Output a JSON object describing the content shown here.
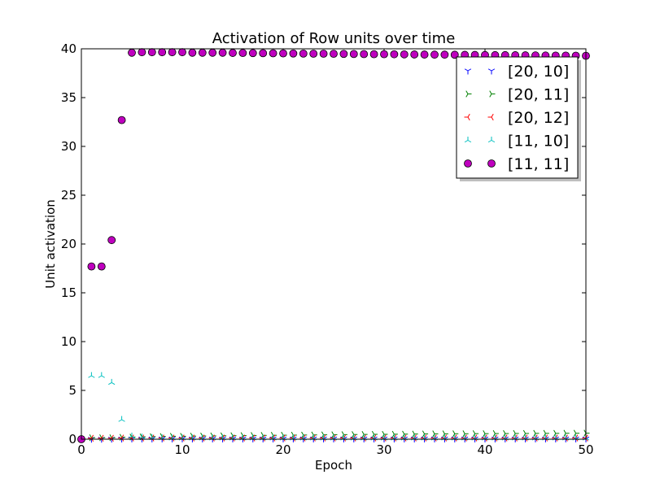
{
  "chart_data": {
    "type": "scatter",
    "title": "Activation of Row units over time",
    "xlabel": "Epoch",
    "ylabel": "Unit activation",
    "xlim": [
      0,
      50
    ],
    "ylim": [
      0,
      40
    ],
    "xticks": [
      "0",
      "10",
      "20",
      "30",
      "40",
      "50"
    ],
    "yticks": [
      "0",
      "5",
      "10",
      "15",
      "20",
      "25",
      "30",
      "35",
      "40"
    ],
    "grid": false,
    "legend_position": "top-right",
    "x": [
      0,
      1,
      2,
      3,
      4,
      5,
      6,
      7,
      8,
      9,
      10,
      11,
      12,
      13,
      14,
      15,
      16,
      17,
      18,
      19,
      20,
      21,
      22,
      23,
      24,
      25,
      26,
      27,
      28,
      29,
      30,
      31,
      32,
      33,
      34,
      35,
      36,
      37,
      38,
      39,
      40,
      41,
      42,
      43,
      44,
      45,
      46,
      47,
      48,
      49,
      50
    ],
    "series": [
      {
        "name": "[20, 10]",
        "marker": "tri_down",
        "color": "#0000ff",
        "values": [
          0,
          0.02,
          0.02,
          0.03,
          0.04,
          0.05,
          0.05,
          0.05,
          0.05,
          0.05,
          0.05,
          0.05,
          0.05,
          0.05,
          0.05,
          0.05,
          0.05,
          0.05,
          0.05,
          0.05,
          0.05,
          0.05,
          0.05,
          0.05,
          0.05,
          0.05,
          0.05,
          0.05,
          0.05,
          0.05,
          0.05,
          0.05,
          0.05,
          0.05,
          0.05,
          0.05,
          0.05,
          0.05,
          0.05,
          0.05,
          0.05,
          0.05,
          0.05,
          0.05,
          0.05,
          0.05,
          0.05,
          0.05,
          0.05,
          0.05,
          0.05
        ]
      },
      {
        "name": "[20, 11]",
        "marker": "tri_right",
        "color": "#008000",
        "values": [
          0,
          0.15,
          0.15,
          0.15,
          0.2,
          0.22,
          0.24,
          0.26,
          0.28,
          0.3,
          0.3,
          0.32,
          0.33,
          0.34,
          0.35,
          0.36,
          0.37,
          0.38,
          0.39,
          0.4,
          0.41,
          0.42,
          0.43,
          0.44,
          0.45,
          0.46,
          0.47,
          0.48,
          0.49,
          0.5,
          0.5,
          0.51,
          0.52,
          0.53,
          0.54,
          0.55,
          0.55,
          0.56,
          0.56,
          0.57,
          0.57,
          0.58,
          0.58,
          0.59,
          0.59,
          0.6,
          0.6,
          0.6,
          0.61,
          0.61,
          0.62
        ]
      },
      {
        "name": "[20, 12]",
        "marker": "tri_left",
        "color": "#ff0000",
        "values": [
          0,
          0.1,
          0.1,
          0.1,
          0.12,
          0.12,
          0.12,
          0.12,
          0.12,
          0.12,
          0.12,
          0.12,
          0.12,
          0.12,
          0.12,
          0.12,
          0.12,
          0.12,
          0.12,
          0.12,
          0.12,
          0.12,
          0.12,
          0.12,
          0.12,
          0.12,
          0.12,
          0.12,
          0.12,
          0.12,
          0.12,
          0.12,
          0.12,
          0.12,
          0.12,
          0.12,
          0.12,
          0.12,
          0.12,
          0.12,
          0.12,
          0.12,
          0.12,
          0.12,
          0.12,
          0.12,
          0.12,
          0.12,
          0.12,
          0.12,
          0.12
        ]
      },
      {
        "name": "[11, 10]",
        "marker": "tri_up",
        "color": "#00bfbf",
        "values": [
          0,
          6.5,
          6.5,
          5.8,
          2.0,
          0.3,
          0.2,
          0.15,
          0.12,
          0.1,
          0.1,
          0.1,
          0.1,
          0.1,
          0.1,
          0.1,
          0.1,
          0.1,
          0.1,
          0.1,
          0.1,
          0.1,
          0.1,
          0.1,
          0.1,
          0.1,
          0.1,
          0.1,
          0.1,
          0.1,
          0.1,
          0.1,
          0.1,
          0.1,
          0.1,
          0.1,
          0.1,
          0.1,
          0.1,
          0.1,
          0.1,
          0.1,
          0.1,
          0.1,
          0.1,
          0.1,
          0.1,
          0.1,
          0.1,
          0.1,
          0.1
        ]
      },
      {
        "name": "[11, 11]",
        "marker": "circle",
        "color": "#bf00bf",
        "values": [
          0,
          17.7,
          17.7,
          20.4,
          32.7,
          39.6,
          39.65,
          39.65,
          39.65,
          39.65,
          39.65,
          39.6,
          39.6,
          39.6,
          39.6,
          39.58,
          39.57,
          39.56,
          39.55,
          39.54,
          39.53,
          39.52,
          39.51,
          39.5,
          39.5,
          39.49,
          39.48,
          39.47,
          39.46,
          39.45,
          39.45,
          39.44,
          39.43,
          39.42,
          39.41,
          39.4,
          39.4,
          39.39,
          39.38,
          39.37,
          39.36,
          39.35,
          39.35,
          39.34,
          39.33,
          39.32,
          39.31,
          39.3,
          39.3,
          39.29,
          39.28
        ]
      }
    ]
  }
}
